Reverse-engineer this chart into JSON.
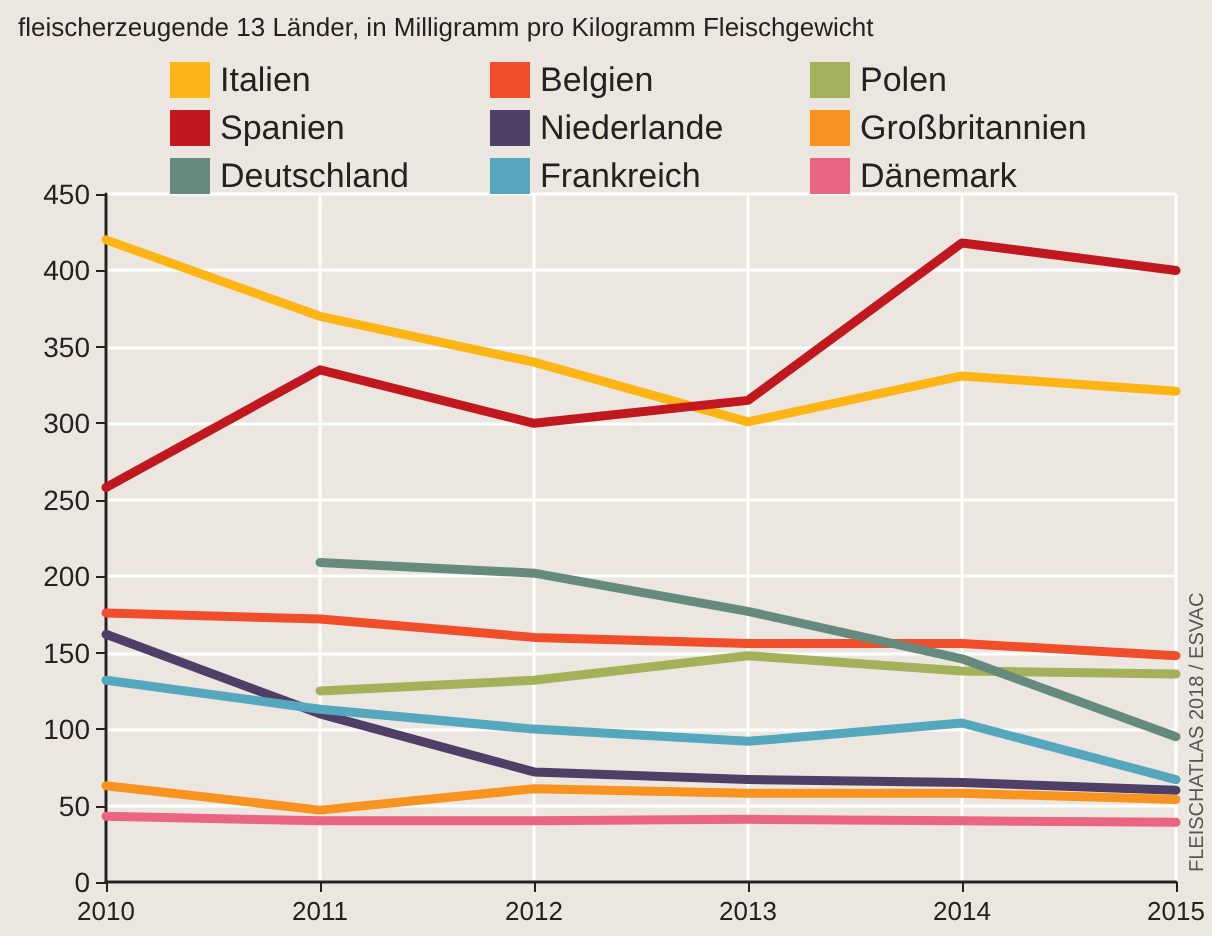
{
  "chart_data": {
    "type": "line",
    "title": "fleischerzeugende 13 Länder, in Milligramm pro Kilogramm Fleischgewicht",
    "annotations": [
      "FLEISCHATLAS 2018 / ESVAC"
    ],
    "x": [
      2010,
      2011,
      2012,
      2013,
      2014,
      2015
    ],
    "xlim": [
      2010,
      2015
    ],
    "xticks": [
      2010,
      2011,
      2012,
      2013,
      2014,
      2015
    ],
    "ylim": [
      0,
      450
    ],
    "yticks": [
      0,
      50,
      100,
      150,
      200,
      250,
      300,
      350,
      400,
      450
    ],
    "grid": true,
    "legend": "top",
    "marker": "none",
    "line_style": "solid",
    "series": [
      {
        "name": "Italien",
        "color": "#fdb515",
        "values": [
          420,
          370,
          340,
          301,
          331,
          321
        ]
      },
      {
        "name": "Belgien",
        "color": "#f04e2a",
        "values": [
          176,
          172,
          160,
          156,
          156,
          148
        ]
      },
      {
        "name": "Polen",
        "color": "#a3b25a",
        "values": [
          null,
          125,
          132,
          148,
          138,
          136
        ]
      },
      {
        "name": "Spanien",
        "color": "#c1171f",
        "values": [
          258,
          335,
          300,
          315,
          418,
          400
        ]
      },
      {
        "name": "Niederlande",
        "color": "#4f3f66",
        "values": [
          162,
          110,
          72,
          67,
          65,
          60
        ]
      },
      {
        "name": "Großbritannien",
        "color": "#f7931e",
        "values": [
          63,
          47,
          61,
          58,
          58,
          54
        ]
      },
      {
        "name": "Deutschland",
        "color": "#668b7e",
        "values": [
          null,
          209,
          202,
          177,
          146,
          95
        ]
      },
      {
        "name": "Frankreich",
        "color": "#55a7bd",
        "values": [
          132,
          113,
          100,
          92,
          104,
          67
        ]
      },
      {
        "name": "Dänemark",
        "color": "#ea6580",
        "values": [
          43,
          40,
          40,
          41,
          40,
          39
        ]
      }
    ]
  }
}
